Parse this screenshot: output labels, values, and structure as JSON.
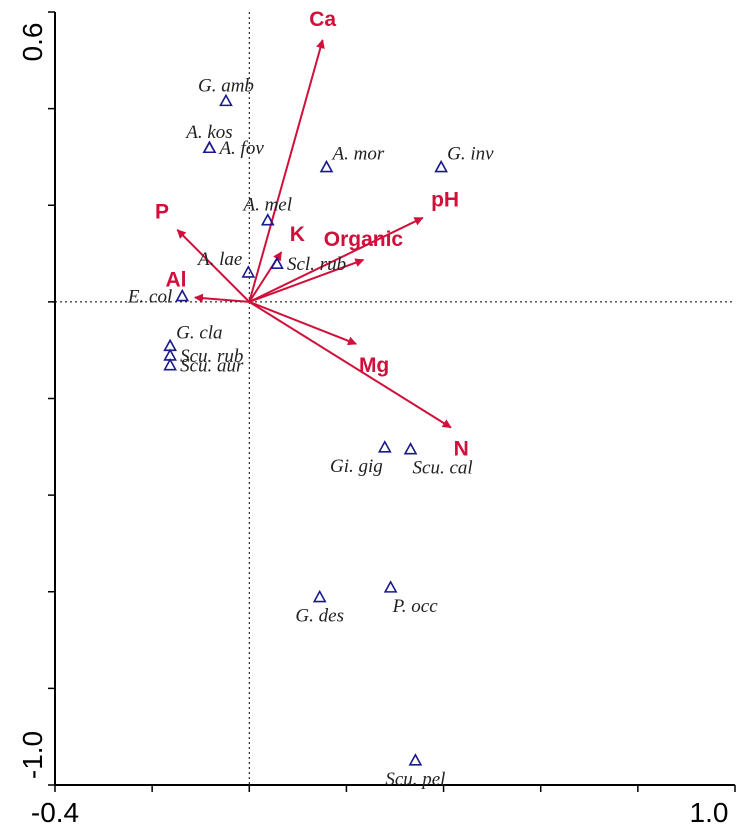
{
  "colors": {
    "arrow": "#d0103a",
    "marker": "#1a1a8c",
    "axis": "#000000"
  },
  "chart_data": {
    "type": "scatter",
    "title": "",
    "xlabel": "",
    "ylabel": "",
    "xlim": [
      -0.4,
      1.0
    ],
    "ylim": [
      -1.0,
      0.6
    ],
    "x_tick_labels": [
      "-0.4",
      "1.0"
    ],
    "y_tick_labels": [
      "0.6",
      "-1.0"
    ],
    "origin_reference_lines": "dotted",
    "grid": false,
    "legend": "none",
    "species": [
      {
        "label": "G. amb",
        "x": -0.048,
        "y": 0.415,
        "label_pos": "above"
      },
      {
        "label": "A. kos",
        "x": -0.082,
        "y": 0.318,
        "label_pos": "above"
      },
      {
        "label": "A. fov",
        "x": -0.082,
        "y": 0.318,
        "label_pos": "right"
      },
      {
        "label": "A. mor",
        "x": 0.159,
        "y": 0.278,
        "label_pos": "above-right"
      },
      {
        "label": "G. inv",
        "x": 0.395,
        "y": 0.278,
        "label_pos": "above-right"
      },
      {
        "label": "A. mel",
        "x": 0.038,
        "y": 0.168,
        "label_pos": "above"
      },
      {
        "label": "Scl. rub",
        "x": 0.057,
        "y": 0.078,
        "label_pos": "right"
      },
      {
        "label": "A. lae",
        "x": -0.002,
        "y": 0.06,
        "label_pos": "above-left"
      },
      {
        "label": "E. col",
        "x": -0.138,
        "y": 0.011,
        "label_pos": "left"
      },
      {
        "label": "G. cla",
        "x": -0.163,
        "y": -0.092,
        "label_pos": "above-right"
      },
      {
        "label": "Scu. rub",
        "x": -0.163,
        "y": -0.112,
        "label_pos": "right"
      },
      {
        "label": "Scu. aur",
        "x": -0.163,
        "y": -0.132,
        "label_pos": "right"
      },
      {
        "label": "Gi. gig",
        "x": 0.279,
        "y": -0.302,
        "label_pos": "below-left"
      },
      {
        "label": "Scu. cal",
        "x": 0.332,
        "y": -0.306,
        "label_pos": "below-right"
      },
      {
        "label": "G. des",
        "x": 0.145,
        "y": -0.612,
        "label_pos": "below"
      },
      {
        "label": "P. occ",
        "x": 0.291,
        "y": -0.592,
        "label_pos": "below-right"
      },
      {
        "label": "Scu. pel",
        "x": 0.342,
        "y": -0.95,
        "label_pos": "below"
      }
    ],
    "environment_vectors": [
      {
        "label": "Ca",
        "x": 0.151,
        "y": 0.542,
        "label_pos": "above"
      },
      {
        "label": "P",
        "x": -0.148,
        "y": 0.149,
        "label_pos": "above-left"
      },
      {
        "label": "K",
        "x": 0.066,
        "y": 0.103,
        "label_pos": "above-right"
      },
      {
        "label": "pH",
        "x": 0.357,
        "y": 0.174,
        "label_pos": "above-right"
      },
      {
        "label": "Organic",
        "x": 0.235,
        "y": 0.087,
        "label_pos": "above"
      },
      {
        "label": "Al",
        "x": -0.112,
        "y": 0.009,
        "label_pos": "above-left"
      },
      {
        "label": "Mg",
        "x": 0.22,
        "y": -0.087,
        "label_pos": "below-right"
      },
      {
        "label": "N",
        "x": 0.415,
        "y": -0.26,
        "label_pos": "below-right"
      }
    ]
  }
}
